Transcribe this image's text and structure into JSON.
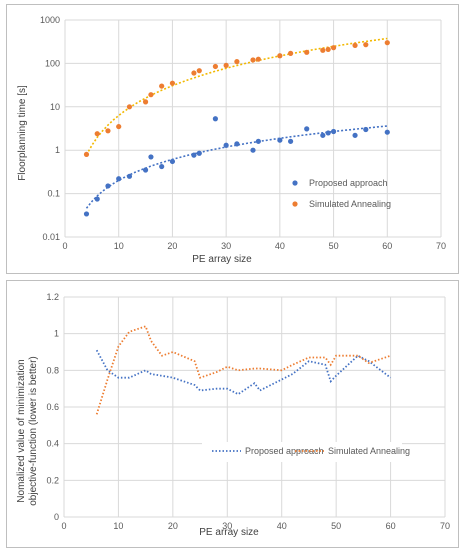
{
  "colors": {
    "proposed": "#4472c4",
    "annealing": "#ed7d31",
    "trend_annealing": "#f2b800",
    "grid": "#d9d9d9"
  },
  "chart_data": [
    {
      "type": "scatter",
      "title": "",
      "xlabel": "PE array size",
      "ylabel": "Floorplanning time [s]",
      "xlim": [
        0,
        70
      ],
      "ylim": [
        0.01,
        1000
      ],
      "yscale": "log",
      "grid": true,
      "legend_position": "bottom-right",
      "x_ticks": [
        "0",
        "10",
        "20",
        "30",
        "40",
        "50",
        "60",
        "70"
      ],
      "y_ticks": [
        "0.01",
        "0.1",
        "1",
        "10",
        "100",
        "1000"
      ],
      "series": [
        {
          "name": "Proposed approach",
          "trendline": "power",
          "x": [
            4,
            6,
            8,
            10,
            12,
            15,
            16,
            18,
            20,
            24,
            25,
            28,
            30,
            32,
            35,
            36,
            40,
            42,
            45,
            48,
            49,
            50,
            54,
            56,
            60
          ],
          "y": [
            0.034,
            0.075,
            0.15,
            0.22,
            0.25,
            0.35,
            0.7,
            0.42,
            0.55,
            0.77,
            0.85,
            5.3,
            1.3,
            1.4,
            1.0,
            1.6,
            1.7,
            1.6,
            3.1,
            2.2,
            2.5,
            2.7,
            2.2,
            3.0,
            2.6
          ]
        },
        {
          "name": "Simulated Annealing",
          "trendline": "power",
          "x": [
            4,
            6,
            8,
            10,
            12,
            15,
            16,
            18,
            20,
            24,
            25,
            28,
            30,
            32,
            35,
            36,
            40,
            42,
            45,
            48,
            49,
            50,
            54,
            56,
            60
          ],
          "y": [
            0.8,
            2.4,
            2.8,
            3.5,
            10,
            13,
            19,
            30,
            35,
            60,
            68,
            85,
            90,
            110,
            120,
            125,
            150,
            170,
            180,
            200,
            210,
            230,
            260,
            270,
            300
          ]
        }
      ]
    },
    {
      "type": "line",
      "title": "",
      "xlabel": "PE array size",
      "ylabel_lines": [
        "Nomalized value of minimization",
        "objective-function (lower is better)"
      ],
      "xlim": [
        0,
        70
      ],
      "ylim": [
        0,
        1.2
      ],
      "grid": true,
      "legend_position": "bottom",
      "x_ticks": [
        "0",
        "10",
        "20",
        "30",
        "40",
        "50",
        "60",
        "70"
      ],
      "y_ticks": [
        "0",
        "0.2",
        "0.4",
        "0.6",
        "0.8",
        "1",
        "1.2"
      ],
      "series": [
        {
          "name": "Proposed approach",
          "x": [
            6,
            8,
            10,
            12,
            15,
            16,
            18,
            20,
            24,
            25,
            28,
            30,
            32,
            35,
            36,
            40,
            42,
            45,
            48,
            49,
            50,
            54,
            56,
            60
          ],
          "y": [
            0.91,
            0.8,
            0.76,
            0.76,
            0.8,
            0.78,
            0.77,
            0.76,
            0.72,
            0.69,
            0.7,
            0.7,
            0.67,
            0.73,
            0.69,
            0.75,
            0.78,
            0.85,
            0.83,
            0.74,
            0.77,
            0.88,
            0.85,
            0.76
          ]
        },
        {
          "name": "Simulated Annealing",
          "x": [
            6,
            8,
            10,
            12,
            15,
            16,
            18,
            20,
            24,
            25,
            28,
            30,
            32,
            35,
            36,
            40,
            42,
            45,
            48,
            49,
            50,
            54,
            56,
            60
          ],
          "y": [
            0.56,
            0.75,
            0.93,
            1.01,
            1.04,
            0.96,
            0.88,
            0.9,
            0.85,
            0.76,
            0.79,
            0.82,
            0.8,
            0.81,
            0.81,
            0.8,
            0.83,
            0.87,
            0.87,
            0.83,
            0.88,
            0.88,
            0.84,
            0.88
          ]
        }
      ]
    }
  ]
}
